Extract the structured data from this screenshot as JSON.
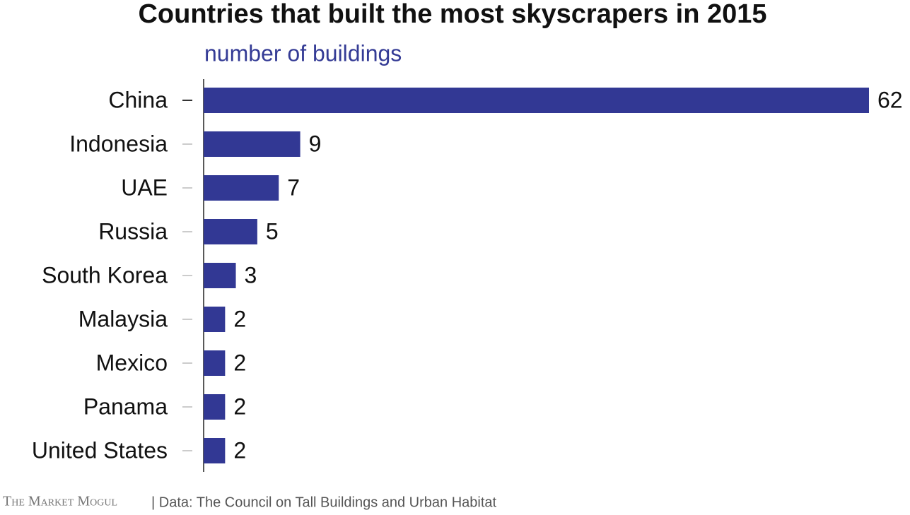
{
  "chart_data": {
    "type": "bar",
    "orientation": "horizontal",
    "title": "Countries that built the most skyscrapers in 2015",
    "subtitle": "number of buildings",
    "categories": [
      "China",
      "Indonesia",
      "UAE",
      "Russia",
      "South Korea",
      "Malaysia",
      "Mexico",
      "Panama",
      "United States"
    ],
    "values": [
      62,
      9,
      7,
      5,
      3,
      2,
      2,
      2,
      2
    ],
    "color": "#323894",
    "xlim": [
      0,
      62
    ],
    "brand": "The Market Mogul",
    "source": "| Data: The Council on Tall Buildings and Urban Habitat"
  }
}
